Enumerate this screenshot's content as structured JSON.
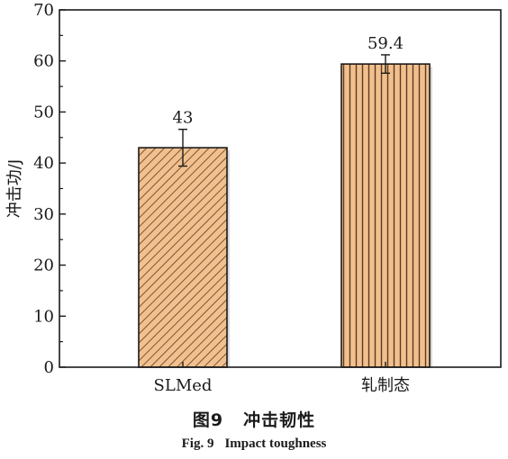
{
  "chart_data": {
    "type": "bar",
    "categories": [
      "SLMed",
      "轧制态"
    ],
    "values": [
      43,
      59.4
    ],
    "error": [
      3.6,
      1.8
    ],
    "data_labels": [
      "43",
      "59.4"
    ],
    "ylabel": "冲击功/J",
    "xlabel": "",
    "ylim": [
      0,
      70
    ],
    "yticks": [
      "0",
      "10",
      "20",
      "30",
      "40",
      "50",
      "60",
      "70"
    ],
    "grid": false,
    "legend": "none",
    "bar_fill": "#f2c08e",
    "bar_stroke": "#1a1a1a",
    "hatch_patterns": [
      "diagonal",
      "vertical"
    ]
  },
  "caption": {
    "zh_number": "图9",
    "zh_title": "冲击韧性",
    "en_number": "Fig. 9",
    "en_title": "Impact toughness"
  }
}
